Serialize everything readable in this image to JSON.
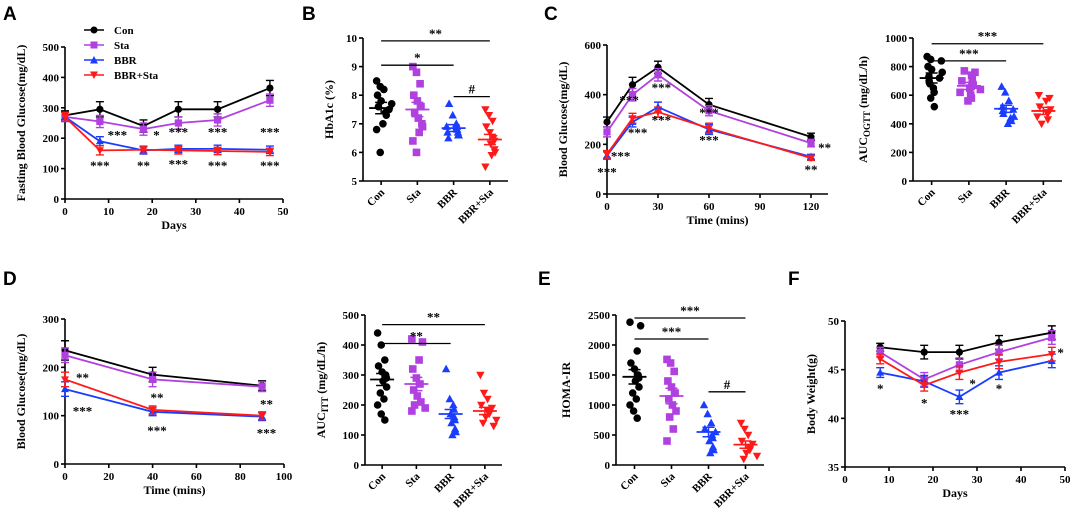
{
  "figure": {
    "colors": {
      "Con": "#000000",
      "Sta": "#b040e0",
      "BBR": "#1a3cff",
      "BBR+Sta": "#ff1a1a"
    },
    "markers": {
      "Con": "circle",
      "Sta": "square",
      "BBR": "triangle-up",
      "BBR+Sta": "triangle-down"
    }
  },
  "chart_data": [
    {
      "panel": "A",
      "type": "line",
      "ylabel": "Fasting Blood Glucose(mg/dL)",
      "xlabel": "Days",
      "xlim": [
        0,
        50
      ],
      "ylim": [
        0,
        500
      ],
      "xticks": [
        0,
        10,
        20,
        30,
        40,
        50
      ],
      "yticks": [
        0,
        100,
        200,
        300,
        400,
        500
      ],
      "legend": [
        "Con",
        "Sta",
        "BBR",
        "BBR+Sta"
      ],
      "x": [
        0,
        8,
        18,
        26,
        35,
        47
      ],
      "series": [
        {
          "name": "Con",
          "values": [
            275,
            295,
            240,
            295,
            295,
            365
          ],
          "err": [
            15,
            25,
            20,
            25,
            25,
            25
          ]
        },
        {
          "name": "Sta",
          "values": [
            270,
            255,
            230,
            250,
            260,
            325
          ],
          "err": [
            15,
            20,
            20,
            20,
            20,
            20
          ]
        },
        {
          "name": "BBR",
          "values": [
            270,
            190,
            160,
            165,
            165,
            162
          ],
          "err": [
            15,
            15,
            12,
            12,
            12,
            12
          ]
        },
        {
          "name": "BBR+Sta",
          "values": [
            270,
            160,
            162,
            160,
            158,
            155
          ],
          "err": [
            15,
            15,
            12,
            12,
            12,
            12
          ]
        }
      ],
      "annotations": [
        {
          "text": "***",
          "x": 12,
          "y": 195
        },
        {
          "text": "***",
          "x": 8,
          "y": 95
        },
        {
          "text": "*",
          "x": 21,
          "y": 195
        },
        {
          "text": "**",
          "x": 18,
          "y": 95
        },
        {
          "text": "***",
          "x": 26,
          "y": 205
        },
        {
          "text": "***",
          "x": 26,
          "y": 100
        },
        {
          "text": "***",
          "x": 35,
          "y": 205
        },
        {
          "text": "***",
          "x": 35,
          "y": 95
        },
        {
          "text": "***",
          "x": 47,
          "y": 205
        },
        {
          "text": "***",
          "x": 47,
          "y": 95
        }
      ]
    },
    {
      "panel": "B",
      "type": "scatter",
      "ylabel": "HbA1c (%)",
      "ylim": [
        5,
        10
      ],
      "yticks": [
        5,
        6,
        7,
        8,
        9,
        10
      ],
      "categories": [
        "Con",
        "Sta",
        "BBR",
        "BBR+Sta"
      ],
      "groups": [
        {
          "name": "Con",
          "mean": 7.55,
          "sem": 0.2,
          "points": [
            8.5,
            8.3,
            8.2,
            8.0,
            7.8,
            7.7,
            7.6,
            7.5,
            7.4,
            7.3,
            7.0,
            6.8,
            6.0
          ]
        },
        {
          "name": "Sta",
          "mean": 7.5,
          "sem": 0.25,
          "points": [
            9.0,
            8.8,
            8.4,
            8.0,
            7.8,
            7.6,
            7.4,
            7.2,
            7.0,
            6.9,
            6.7,
            6.4,
            6.0
          ]
        },
        {
          "name": "BBR",
          "mean": 6.85,
          "sem": 0.12,
          "points": [
            7.7,
            7.3,
            7.0,
            6.9,
            6.9,
            6.8,
            6.7,
            6.7,
            6.6,
            6.6,
            6.5
          ]
        },
        {
          "name": "BBR+Sta",
          "mean": 6.45,
          "sem": 0.18,
          "points": [
            7.5,
            7.3,
            7.1,
            6.9,
            6.7,
            6.5,
            6.4,
            6.3,
            6.1,
            6.0,
            5.9,
            5.5
          ]
        }
      ],
      "brackets": [
        {
          "from": 0,
          "to": 3,
          "y": 9.9,
          "label": "**"
        },
        {
          "from": 0,
          "to": 2,
          "y": 9.05,
          "label": "*"
        },
        {
          "from": 2,
          "to": 3,
          "y": 7.95,
          "label": "#"
        }
      ]
    },
    {
      "panel": "C",
      "type": "line",
      "ylabel": "Blood Glucose(mg/dL)",
      "xlabel": "Time (mins)",
      "xlim": [
        0,
        130
      ],
      "ylim": [
        0,
        600
      ],
      "xticks": [
        0,
        30,
        60,
        90,
        120
      ],
      "yticks": [
        0,
        200,
        400,
        600
      ],
      "x": [
        0,
        15,
        30,
        60,
        120
      ],
      "series": [
        {
          "name": "Con",
          "values": [
            290,
            440,
            510,
            360,
            230
          ],
          "err": [
            20,
            30,
            25,
            25,
            15
          ]
        },
        {
          "name": "Sta",
          "values": [
            250,
            400,
            480,
            335,
            205
          ],
          "err": [
            20,
            25,
            25,
            20,
            15
          ]
        },
        {
          "name": "BBR",
          "values": [
            155,
            290,
            350,
            260,
            150
          ],
          "err": [
            15,
            20,
            20,
            20,
            10
          ]
        },
        {
          "name": "BBR+Sta",
          "values": [
            160,
            305,
            330,
            265,
            145
          ],
          "err": [
            15,
            20,
            20,
            20,
            10
          ]
        }
      ],
      "annotations": [
        {
          "text": "***",
          "x": 0,
          "y": 70
        },
        {
          "text": "***",
          "x": 8,
          "y": 135
        },
        {
          "text": "***",
          "x": 13,
          "y": 360
        },
        {
          "text": "***",
          "x": 18,
          "y": 230
        },
        {
          "text": "***",
          "x": 32,
          "y": 410
        },
        {
          "text": "***",
          "x": 32,
          "y": 280
        },
        {
          "text": "***",
          "x": 60,
          "y": 310
        },
        {
          "text": "***",
          "x": 60,
          "y": 200
        },
        {
          "text": "**",
          "x": 128,
          "y": 170
        },
        {
          "text": "**",
          "x": 120,
          "y": 80
        }
      ]
    },
    {
      "panel": "C-right",
      "type": "scatter",
      "ylabel": "AUC",
      "ylabel_sub": "OGTT",
      "ylabel_suffix": " (mg/dL/h)",
      "ylim": [
        0,
        1000
      ],
      "yticks": [
        0,
        200,
        400,
        600,
        800,
        1000
      ],
      "categories": [
        "Con",
        "Sta",
        "BBR",
        "BBR+Sta"
      ],
      "groups": [
        {
          "name": "Con",
          "mean": 720,
          "sem": 35,
          "points": [
            870,
            850,
            840,
            800,
            780,
            760,
            730,
            720,
            700,
            680,
            650,
            620,
            580,
            520
          ]
        },
        {
          "name": "Sta",
          "mean": 665,
          "sem": 25,
          "points": [
            770,
            760,
            740,
            720,
            700,
            680,
            670,
            650,
            640,
            620,
            600,
            580,
            560
          ]
        },
        {
          "name": "BBR",
          "mean": 505,
          "sem": 25,
          "points": [
            660,
            620,
            560,
            520,
            500,
            490,
            470,
            450,
            440,
            420,
            400
          ]
        },
        {
          "name": "BBR+Sta",
          "mean": 490,
          "sem": 25,
          "points": [
            600,
            580,
            560,
            520,
            500,
            480,
            470,
            450,
            430,
            400
          ]
        }
      ],
      "brackets": [
        {
          "from": 0,
          "to": 3,
          "y": 960,
          "label": "***"
        },
        {
          "from": 0,
          "to": 2,
          "y": 840,
          "label": "***"
        }
      ]
    },
    {
      "panel": "D",
      "type": "line",
      "ylabel": "Blood Glucose(mg/dL)",
      "xlabel": "Time (mins)",
      "xlim": [
        0,
        100
      ],
      "ylim": [
        0,
        300
      ],
      "xticks": [
        0,
        20,
        40,
        60,
        80,
        100
      ],
      "yticks": [
        0,
        100,
        200,
        300
      ],
      "x": [
        0,
        40,
        90
      ],
      "series": [
        {
          "name": "Con",
          "values": [
            235,
            185,
            162
          ],
          "err": [
            20,
            15,
            10
          ]
        },
        {
          "name": "Sta",
          "values": [
            225,
            175,
            160
          ],
          "err": [
            15,
            15,
            10
          ]
        },
        {
          "name": "BBR",
          "values": [
            155,
            108,
            98
          ],
          "err": [
            15,
            8,
            8
          ]
        },
        {
          "name": "BBR+Sta",
          "values": [
            175,
            112,
            100
          ],
          "err": [
            15,
            8,
            8
          ]
        }
      ],
      "annotations": [
        {
          "text": "**",
          "x": 8,
          "y": 170
        },
        {
          "text": "***",
          "x": 8,
          "y": 100
        },
        {
          "text": "**",
          "x": 42,
          "y": 128
        },
        {
          "text": "***",
          "x": 42,
          "y": 60
        },
        {
          "text": "**",
          "x": 92,
          "y": 115
        },
        {
          "text": "***",
          "x": 92,
          "y": 55
        }
      ]
    },
    {
      "panel": "D-right",
      "type": "scatter",
      "ylabel": "AUC",
      "ylabel_sub": "ITT",
      "ylabel_suffix": " (mg/dL/h)",
      "ylim": [
        0,
        500
      ],
      "yticks": [
        0,
        100,
        200,
        300,
        400,
        500
      ],
      "categories": [
        "Con",
        "Sta",
        "BBR",
        "BBR+Sta"
      ],
      "groups": [
        {
          "name": "Con",
          "mean": 285,
          "sem": 20,
          "points": [
            440,
            400,
            350,
            330,
            310,
            300,
            290,
            280,
            260,
            240,
            220,
            200,
            170,
            150
          ]
        },
        {
          "name": "Sta",
          "mean": 270,
          "sem": 22,
          "points": [
            420,
            410,
            350,
            320,
            290,
            270,
            250,
            230,
            210,
            200,
            190,
            180
          ]
        },
        {
          "name": "BBR",
          "mean": 170,
          "sem": 15,
          "points": [
            320,
            220,
            200,
            185,
            170,
            160,
            150,
            140,
            120,
            110,
            100
          ]
        },
        {
          "name": "BBR+Sta",
          "mean": 180,
          "sem": 12,
          "points": [
            300,
            240,
            220,
            200,
            190,
            180,
            170,
            160,
            150,
            140,
            130
          ]
        }
      ],
      "brackets": [
        {
          "from": 0,
          "to": 3,
          "y": 468,
          "label": "**"
        },
        {
          "from": 0,
          "to": 2,
          "y": 405,
          "label": "**"
        }
      ]
    },
    {
      "panel": "E",
      "type": "scatter",
      "ylabel": "HOMA-IR",
      "ylim": [
        0,
        2500
      ],
      "yticks": [
        0,
        500,
        1000,
        1500,
        2000,
        2500
      ],
      "categories": [
        "Con",
        "Sta",
        "BBR",
        "BBR+Sta"
      ],
      "groups": [
        {
          "name": "Con",
          "mean": 1470,
          "sem": 120,
          "points": [
            2380,
            2320,
            1900,
            1700,
            1600,
            1500,
            1450,
            1400,
            1300,
            1200,
            1100,
            1000,
            900,
            780
          ]
        },
        {
          "name": "Sta",
          "mean": 1150,
          "sem": 130,
          "points": [
            1760,
            1700,
            1560,
            1400,
            1300,
            1200,
            1100,
            1000,
            900,
            800,
            600,
            400
          ]
        },
        {
          "name": "BBR",
          "mean": 550,
          "sem": 80,
          "points": [
            1000,
            850,
            700,
            600,
            550,
            500,
            450,
            400,
            300,
            250,
            200
          ]
        },
        {
          "name": "BBR+Sta",
          "mean": 340,
          "sem": 60,
          "points": [
            700,
            600,
            500,
            400,
            350,
            300,
            250,
            200,
            150,
            100
          ]
        }
      ],
      "brackets": [
        {
          "from": 0,
          "to": 3,
          "y": 2450,
          "label": "***"
        },
        {
          "from": 0,
          "to": 2,
          "y": 2100,
          "label": "***"
        },
        {
          "from": 2,
          "to": 3,
          "y": 1220,
          "label": "#"
        }
      ]
    },
    {
      "panel": "F",
      "type": "line",
      "ylabel": "Body Weight(g)",
      "xlabel": "Days",
      "xlim": [
        0,
        50
      ],
      "ylim": [
        35,
        50
      ],
      "xticks": [
        0,
        10,
        20,
        30,
        40,
        50
      ],
      "yticks": [
        35,
        40,
        45,
        50
      ],
      "x": [
        8,
        18,
        26,
        35,
        47
      ],
      "series": [
        {
          "name": "Con",
          "values": [
            47.3,
            46.8,
            46.8,
            47.8,
            48.8
          ],
          "err": [
            0.4,
            0.7,
            0.7,
            0.7,
            0.7
          ]
        },
        {
          "name": "Sta",
          "values": [
            46.8,
            44.0,
            45.5,
            46.8,
            48.3
          ],
          "err": [
            0.5,
            0.7,
            0.7,
            0.7,
            0.7
          ]
        },
        {
          "name": "BBR",
          "values": [
            44.7,
            43.8,
            42.2,
            44.7,
            45.9
          ],
          "err": [
            0.5,
            0.6,
            0.7,
            0.7,
            0.7
          ]
        },
        {
          "name": "BBR+Sta",
          "values": [
            46.1,
            43.4,
            44.7,
            45.8,
            46.6
          ],
          "err": [
            0.5,
            0.6,
            0.7,
            0.7,
            0.7
          ]
        }
      ],
      "annotations": [
        {
          "text": "*",
          "x": 8,
          "y": 42.6
        },
        {
          "text": "*",
          "x": 18,
          "y": 41.1
        },
        {
          "text": "*",
          "x": 29,
          "y": 43.1
        },
        {
          "text": "***",
          "x": 26,
          "y": 40.0
        },
        {
          "text": "*",
          "x": 35,
          "y": 42.6
        },
        {
          "text": "*",
          "x": 49,
          "y": 46.3
        }
      ]
    }
  ]
}
